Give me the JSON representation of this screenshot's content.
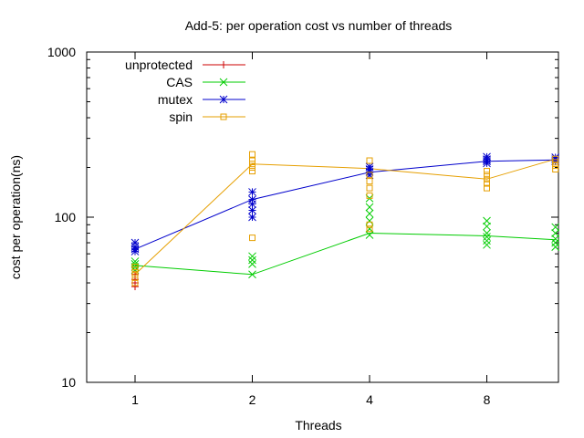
{
  "chart_data": {
    "type": "line",
    "title": "Add-5: per operation cost vs number of threads",
    "xlabel": "Threads",
    "ylabel": "cost per operation(ns)",
    "x_scale": "log2",
    "y_scale": "log10",
    "xlim": [
      1,
      12
    ],
    "ylim": [
      10,
      1000
    ],
    "x_ticks": [
      1,
      2,
      4,
      8
    ],
    "x_tick_labels": [
      "1",
      "2",
      "4",
      "8"
    ],
    "y_ticks": [
      10,
      100,
      1000
    ],
    "y_tick_labels": [
      "10",
      "100",
      "1000"
    ],
    "grid": false,
    "legend_position": "top-left",
    "series": [
      {
        "name": "unprotected",
        "color": "#cc0000",
        "marker": "plus",
        "line_x": [],
        "line_y": [],
        "points": [
          [
            1,
            38
          ],
          [
            1,
            40
          ],
          [
            1,
            42
          ],
          [
            1,
            45
          ]
        ]
      },
      {
        "name": "CAS",
        "color": "#00cc00",
        "marker": "x",
        "line_x": [
          1,
          2,
          4,
          8,
          12
        ],
        "line_y": [
          51,
          45,
          80,
          77,
          73
        ],
        "points": [
          [
            1,
            48
          ],
          [
            1,
            50
          ],
          [
            1,
            52
          ],
          [
            1,
            54
          ],
          [
            2,
            45
          ],
          [
            2,
            52
          ],
          [
            2,
            55
          ],
          [
            2,
            58
          ],
          [
            4,
            78
          ],
          [
            4,
            85
          ],
          [
            4,
            95
          ],
          [
            4,
            105
          ],
          [
            4,
            115
          ],
          [
            4,
            130
          ],
          [
            8,
            68
          ],
          [
            8,
            72
          ],
          [
            8,
            76
          ],
          [
            8,
            80
          ],
          [
            8,
            88
          ],
          [
            8,
            95
          ],
          [
            12,
            66
          ],
          [
            12,
            70
          ],
          [
            12,
            74
          ],
          [
            12,
            80
          ],
          [
            12,
            87
          ]
        ]
      },
      {
        "name": "mutex",
        "color": "#0000cc",
        "marker": "asterisk",
        "line_x": [
          1,
          2,
          4,
          8,
          12
        ],
        "line_y": [
          64,
          128,
          187,
          218,
          222
        ],
        "points": [
          [
            1,
            62
          ],
          [
            1,
            64
          ],
          [
            1,
            66
          ],
          [
            1,
            70
          ],
          [
            2,
            100
          ],
          [
            2,
            110
          ],
          [
            2,
            120
          ],
          [
            2,
            128
          ],
          [
            2,
            142
          ],
          [
            4,
            180
          ],
          [
            4,
            188
          ],
          [
            4,
            195
          ],
          [
            4,
            202
          ],
          [
            8,
            212
          ],
          [
            8,
            218
          ],
          [
            8,
            224
          ],
          [
            8,
            232
          ],
          [
            12,
            218
          ],
          [
            12,
            224
          ],
          [
            12,
            230
          ]
        ]
      },
      {
        "name": "spin",
        "color": "#e69f00",
        "marker": "square",
        "line_x": [
          1,
          2,
          4,
          8,
          12
        ],
        "line_y": [
          45,
          210,
          197,
          170,
          225
        ],
        "points": [
          [
            1,
            40
          ],
          [
            1,
            43
          ],
          [
            1,
            45
          ],
          [
            1,
            48
          ],
          [
            1,
            50
          ],
          [
            2,
            75
          ],
          [
            2,
            190
          ],
          [
            2,
            200
          ],
          [
            2,
            210
          ],
          [
            2,
            220
          ],
          [
            2,
            240
          ],
          [
            4,
            85
          ],
          [
            4,
            90
          ],
          [
            4,
            135
          ],
          [
            4,
            150
          ],
          [
            4,
            165
          ],
          [
            4,
            180
          ],
          [
            4,
            220
          ],
          [
            8,
            150
          ],
          [
            8,
            160
          ],
          [
            8,
            170
          ],
          [
            8,
            180
          ],
          [
            8,
            190
          ],
          [
            12,
            195
          ],
          [
            12,
            205
          ],
          [
            12,
            215
          ],
          [
            12,
            225
          ]
        ]
      }
    ]
  }
}
